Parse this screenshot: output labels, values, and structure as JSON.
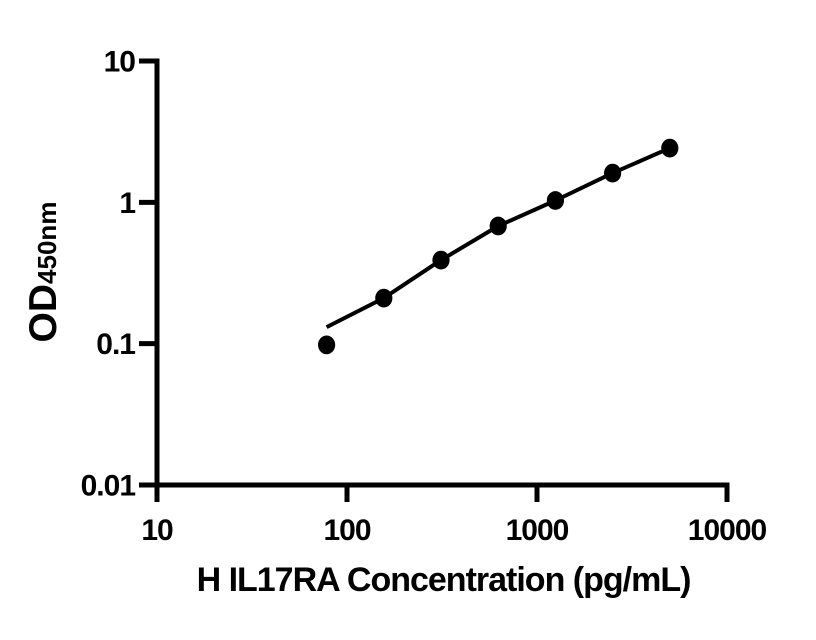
{
  "figure": {
    "background_color": "#ffffff",
    "foreground_color": "#000000"
  },
  "chart_data": {
    "type": "scatter",
    "title": "",
    "xlabel": "H IL17RA Concentration (pg/mL)",
    "ylabel_main": "OD",
    "ylabel_sub": "450nm",
    "x_scale": "log",
    "y_scale": "log",
    "xlim": [
      10,
      10000
    ],
    "ylim": [
      0.01,
      10
    ],
    "grid": false,
    "legend_position": "none",
    "x_ticks": [
      {
        "value": 10,
        "label": "10"
      },
      {
        "value": 100,
        "label": "100"
      },
      {
        "value": 1000,
        "label": "1000"
      },
      {
        "value": 10000,
        "label": "10000"
      }
    ],
    "y_ticks": [
      {
        "value": 10,
        "label": "10"
      },
      {
        "value": 1,
        "label": "1"
      },
      {
        "value": 0.1,
        "label": "0.1"
      },
      {
        "value": 0.01,
        "label": "0.01"
      }
    ],
    "series": [
      {
        "name": "standard-curve-fit-line",
        "kind": "line",
        "color": "#000000",
        "x": [
          78.125,
          156.25,
          312.5,
          625,
          1250,
          2500,
          5000
        ],
        "y": [
          0.131,
          0.21,
          0.39,
          0.68,
          1.03,
          1.61,
          2.42
        ]
      },
      {
        "name": "standard-points",
        "kind": "scatter",
        "color": "#000000",
        "x": [
          78.125,
          156.25,
          312.5,
          625,
          1250,
          2500,
          5000
        ],
        "y": [
          0.098,
          0.21,
          0.39,
          0.68,
          1.03,
          1.61,
          2.42
        ]
      }
    ]
  }
}
